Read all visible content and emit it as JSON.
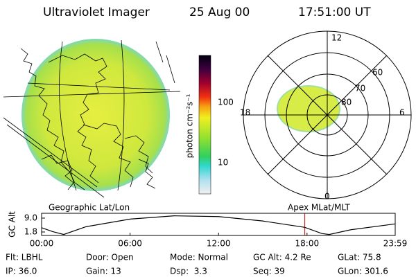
{
  "header": {
    "title": "Ultraviolet Imager",
    "date": "25 Aug 00",
    "time": "17:51:00 UT"
  },
  "geo_panel": {
    "caption": "Geographic Lat/Lon"
  },
  "colorbar": {
    "label": "photon cm⁻²s⁻¹",
    "ticks": [
      "100",
      "10"
    ]
  },
  "polar_panel": {
    "caption": "Apex MLat/MLT",
    "mlt_labels": [
      "12",
      "18",
      "6",
      "0"
    ],
    "lat_labels": [
      "60",
      "70",
      "80"
    ]
  },
  "chart_data": {
    "type": "line",
    "ylabel": "GC Alt",
    "x": [
      0,
      0.75,
      1.5,
      3,
      6,
      9,
      12,
      15,
      17.85,
      19,
      19.5,
      21,
      23.98
    ],
    "values": [
      4.0,
      2.0,
      0.5,
      4.5,
      8.5,
      10.2,
      9.8,
      7.5,
      4.2,
      1.0,
      0.5,
      3.0,
      6.0
    ],
    "color": "#000000",
    "marker_time": 17.85,
    "marker_color": "#cc0000",
    "xlim": [
      0,
      23.98
    ],
    "ylim": [
      0,
      11.5
    ],
    "xticks": [
      {
        "value": 0,
        "label": "00:00"
      },
      {
        "value": 6,
        "label": "06:00"
      },
      {
        "value": 12,
        "label": "12:00"
      },
      {
        "value": 18,
        "label": "18:00"
      },
      {
        "value": 23.98,
        "label": "23:59"
      }
    ],
    "yticks": [
      {
        "value": 9,
        "label": "9.0"
      },
      {
        "value": 1.8,
        "label": "1.8"
      }
    ]
  },
  "info": {
    "rows": [
      [
        "Flt: LBHL",
        "Door: Open",
        "Mode: Normal",
        "GC Alt: 4.2 Re",
        "GLat: 75.8"
      ],
      [
        "IP: 36.0",
        "Gain: 13",
        "Dsp:  3.3",
        "Seq: 39",
        "GLon: 301.6"
      ]
    ]
  }
}
